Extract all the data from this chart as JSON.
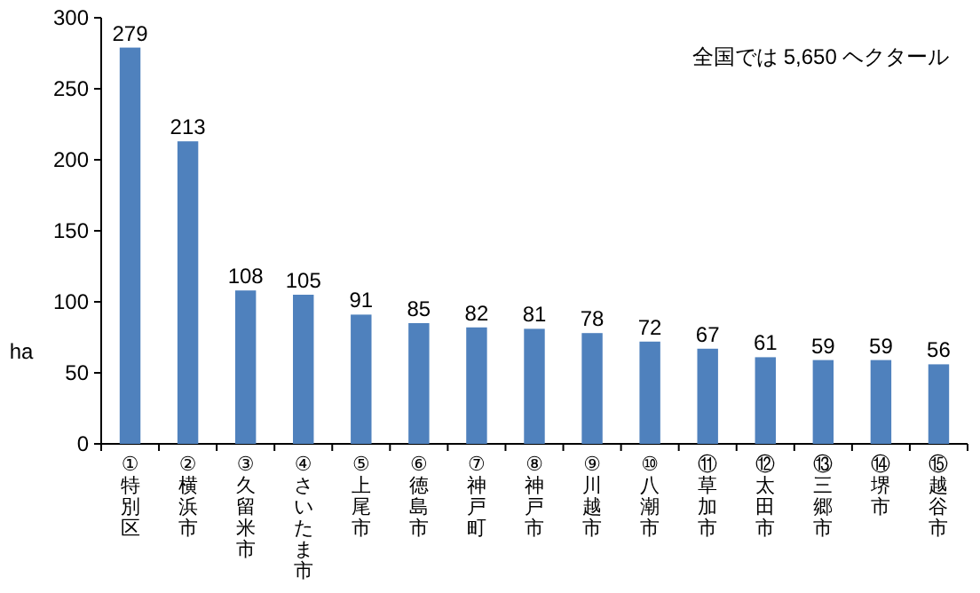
{
  "chart_data": {
    "type": "bar",
    "ylabel": "ha",
    "annotations": [
      "全国では 5,650 ヘクタール"
    ],
    "categories": [
      "①特別区",
      "②横浜市",
      "③久留米市",
      "④さいたま市",
      "⑤上尾市",
      "⑥徳島市",
      "⑦神戸町",
      "⑧神戸市",
      "⑨川越市",
      "⑩八潮市",
      "⑪草加市",
      "⑫太田市",
      "⑬三郷市",
      "⑭堺市",
      "⑮越谷市"
    ],
    "values": [
      279,
      213,
      108,
      105,
      91,
      85,
      82,
      81,
      78,
      72,
      67,
      61,
      59,
      59,
      56
    ],
    "color": "#4f81bd",
    "ylim": [
      0,
      300
    ],
    "yticks": [
      0,
      50,
      100,
      150,
      200,
      250,
      300
    ],
    "data_labels": true
  }
}
